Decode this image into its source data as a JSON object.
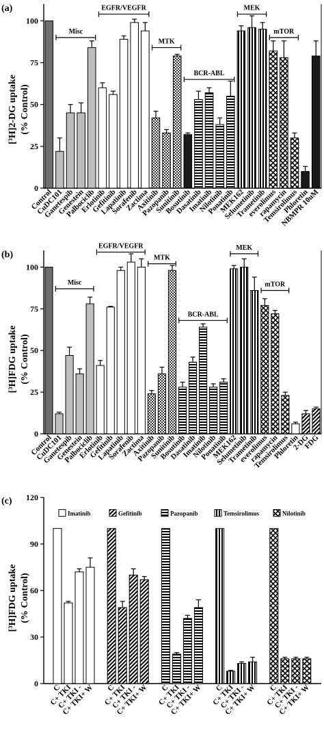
{
  "charts": [
    {
      "panel": "(a)",
      "ylabel_lines": [
        "[³H]2-DG uptake",
        "(% Control)"
      ],
      "ylim": [
        0,
        110
      ],
      "yticks": [
        0,
        25,
        50,
        75,
        100
      ],
      "categories": [
        "Control",
        "CuDC101",
        "Ganetespib",
        "Genestein",
        "Palbociclib",
        "Erlotinib",
        "Gefitinib",
        "Lapatinib",
        "Sorafenib",
        "Zactima",
        "Axitinib",
        "Pazopanib",
        "Sunitinib",
        "Bosutinib",
        "Dasatinib",
        "Imatinib",
        "Nilotinib",
        "Ponatinib",
        "MEK162",
        "Selumetinib",
        "Trametinib",
        "everolimus",
        "rapamycin",
        "Temsirolimus",
        "Phloretin",
        "NBMPR 10uM"
      ],
      "values": [
        100,
        22,
        45,
        45,
        84,
        60,
        56,
        89,
        99,
        94,
        42,
        33,
        79,
        32,
        53,
        57,
        38,
        55,
        94,
        96,
        95,
        82,
        78,
        30,
        10,
        79
      ],
      "errors": [
        0,
        8,
        5,
        6,
        4,
        3,
        2,
        2,
        2,
        5,
        4,
        2,
        1,
        1,
        5,
        3,
        4,
        9,
        3,
        7,
        4,
        6,
        10,
        3,
        3,
        9
      ],
      "patterns": [
        "darkgray",
        "lightgray",
        "lightgray",
        "lightgray",
        "lightgray",
        "white",
        "white",
        "white",
        "white",
        "white",
        "dots",
        "dots",
        "dots",
        "black",
        "hstripe",
        "hstripe",
        "hstripe",
        "hstripe",
        "vstripe",
        "vstripe",
        "vstripe",
        "xhatch",
        "xhatch",
        "xhatch",
        "black",
        "black"
      ],
      "groups": [
        {
          "label": "Misc",
          "from": 1,
          "to": 4,
          "y": 90
        },
        {
          "label": "EGFR/VEGFR",
          "from": 5,
          "to": 9,
          "y": 104
        },
        {
          "label": "MTK",
          "from": 10,
          "to": 12,
          "y": 84
        },
        {
          "label": "BCR-ABL",
          "from": 13,
          "to": 17,
          "y": 65
        },
        {
          "label": "MEK",
          "from": 18,
          "to": 20,
          "y": 104
        },
        {
          "label": "mTOR",
          "from": 21,
          "to": 23,
          "y": 90
        }
      ]
    },
    {
      "panel": "(b)",
      "ylabel_lines": [
        "[³H]FDG uptake",
        "(% Control)"
      ],
      "ylim": [
        0,
        110
      ],
      "yticks": [
        0,
        25,
        50,
        75,
        100
      ],
      "categories": [
        "Control",
        "CuDC101",
        "Ganetespib",
        "Genestein",
        "Palbociclib",
        "Erlotinib",
        "Gefitinib",
        "Lapatinib",
        "Sorafenib",
        "Zactima",
        "Axitinib",
        "Pazopanib",
        "Sunitinib",
        "Bosutinib",
        "Dasatinib",
        "Imatinib",
        "Nilotinib",
        "Ponatinib",
        "MEK162",
        "Selumetinib",
        "Trametinib",
        "everolimus",
        "rapamycin",
        "Temsirolimus",
        "Phloretin",
        "2-DG",
        "FDG"
      ],
      "values": [
        100,
        12,
        47,
        36,
        78,
        41,
        76,
        98,
        103,
        100,
        24,
        36,
        98,
        28,
        43,
        64,
        28,
        31,
        99,
        100,
        86,
        77,
        72,
        23,
        6,
        12,
        15
      ],
      "errors": [
        0,
        1,
        5,
        3,
        4,
        3,
        0.5,
        2,
        5,
        5,
        2,
        4,
        3,
        3,
        3,
        2,
        2,
        2,
        2,
        5,
        8,
        4,
        2,
        2,
        1,
        2,
        1
      ],
      "patterns": [
        "darkgray",
        "lightgray",
        "lightgray",
        "lightgray",
        "lightgray",
        "white",
        "white",
        "white",
        "white",
        "white",
        "dots",
        "dots",
        "dots",
        "hstripe",
        "hstripe",
        "hstripe",
        "hstripe",
        "hstripe",
        "vstripe",
        "vstripe",
        "vstripe",
        "xhatch",
        "xhatch",
        "xhatch",
        "white",
        "hatch",
        "hatch"
      ],
      "groups": [
        {
          "label": "Misc",
          "from": 1,
          "to": 4,
          "y": 87
        },
        {
          "label": "EGFR/VEGFR",
          "from": 5,
          "to": 9,
          "y": 109
        },
        {
          "label": "MTK",
          "from": 10,
          "to": 12,
          "y": 102
        },
        {
          "label": "BCR-ABL",
          "from": 13,
          "to": 17,
          "y": 68
        },
        {
          "label": "MEK",
          "from": 18,
          "to": 20,
          "y": 108
        },
        {
          "label": "mTOR",
          "from": 21,
          "to": 23,
          "y": 86
        }
      ]
    },
    {
      "panel": "(c)",
      "ylabel_lines": [
        "[³H]FDG uptake",
        "(% Control)"
      ],
      "ylim": [
        0,
        120
      ],
      "yticks": [
        0,
        30,
        60,
        90,
        120
      ],
      "group_x_labels": [
        "C",
        "C+ TKI",
        "C+ TKI -",
        "C+ TKI+ W"
      ],
      "series": [
        {
          "name": "Imatinib",
          "pattern": "white",
          "values": [
            100,
            52,
            72,
            75
          ],
          "errors": [
            0,
            1,
            2,
            6
          ]
        },
        {
          "name": "Gefitinib",
          "pattern": "hatch",
          "values": [
            100,
            49,
            70,
            67
          ],
          "errors": [
            0,
            4,
            4,
            2
          ]
        },
        {
          "name": "Pazopanib",
          "pattern": "hstripe",
          "values": [
            100,
            19,
            42,
            49
          ],
          "errors": [
            0,
            1,
            2,
            5
          ]
        },
        {
          "name": "Temsirolimus",
          "pattern": "vstripe",
          "values": [
            100,
            8,
            13,
            14
          ],
          "errors": [
            0,
            0.5,
            1,
            3
          ]
        },
        {
          "name": "Nilotinib",
          "pattern": "xhatch",
          "values": [
            100,
            16,
            16,
            16
          ],
          "errors": [
            0,
            1,
            1,
            1
          ]
        }
      ]
    }
  ]
}
